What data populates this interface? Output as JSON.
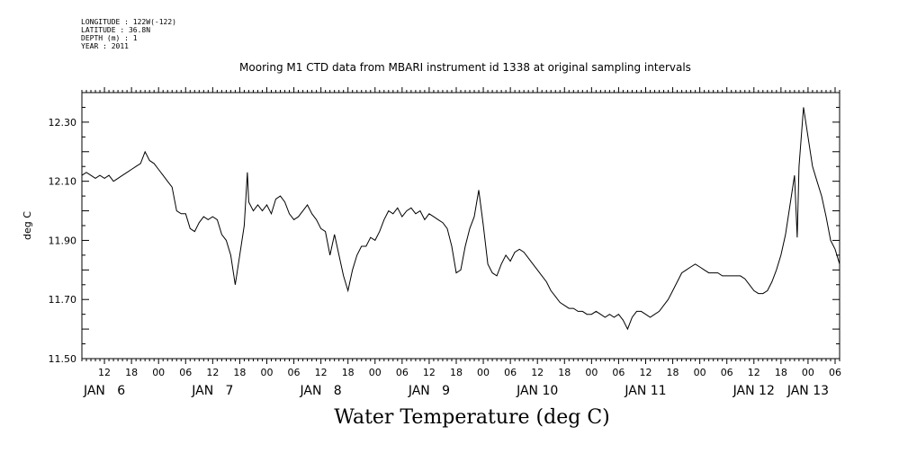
{
  "header": {
    "meta_lines": [
      "LONGITUDE : 122W(-122)",
      "LATITUDE : 36.8N",
      "DEPTH (m) : 1",
      "YEAR : 2011"
    ]
  },
  "chart_data": {
    "type": "line",
    "title": "Mooring M1 CTD data from MBARI instrument id 1338 at original sampling intervals",
    "xlabel": "Water Temperature (deg C)",
    "ylabel": "deg C",
    "ylim": [
      11.5,
      12.4
    ],
    "y_ticks": [
      "11.50",
      "11.70",
      "11.90",
      "12.10",
      "12.30"
    ],
    "x_unit": "hours since Jan 6 00:00 (2011)",
    "xlim": [
      7,
      175
    ],
    "x_hour_ticks": [
      {
        "t": 12,
        "label": "12"
      },
      {
        "t": 18,
        "label": "18"
      },
      {
        "t": 24,
        "label": "00"
      },
      {
        "t": 30,
        "label": "06"
      },
      {
        "t": 36,
        "label": "12"
      },
      {
        "t": 42,
        "label": "18"
      },
      {
        "t": 48,
        "label": "00"
      },
      {
        "t": 54,
        "label": "06"
      },
      {
        "t": 60,
        "label": "12"
      },
      {
        "t": 66,
        "label": "18"
      },
      {
        "t": 72,
        "label": "00"
      },
      {
        "t": 78,
        "label": "06"
      },
      {
        "t": 84,
        "label": "12"
      },
      {
        "t": 90,
        "label": "18"
      },
      {
        "t": 96,
        "label": "00"
      },
      {
        "t": 102,
        "label": "06"
      },
      {
        "t": 108,
        "label": "12"
      },
      {
        "t": 114,
        "label": "18"
      },
      {
        "t": 120,
        "label": "00"
      },
      {
        "t": 126,
        "label": "06"
      },
      {
        "t": 132,
        "label": "12"
      },
      {
        "t": 138,
        "label": "18"
      },
      {
        "t": 144,
        "label": "00"
      },
      {
        "t": 150,
        "label": "06"
      },
      {
        "t": 156,
        "label": "12"
      },
      {
        "t": 162,
        "label": "18"
      },
      {
        "t": 168,
        "label": "00"
      },
      {
        "t": 174,
        "label": "06"
      }
    ],
    "x_day_labels": [
      {
        "t": 12,
        "label": "JAN   6"
      },
      {
        "t": 36,
        "label": "JAN   7"
      },
      {
        "t": 60,
        "label": "JAN   8"
      },
      {
        "t": 84,
        "label": "JAN   9"
      },
      {
        "t": 108,
        "label": "JAN 10"
      },
      {
        "t": 132,
        "label": "JAN 11"
      },
      {
        "t": 156,
        "label": "JAN 12"
      },
      {
        "t": 168,
        "label": "JAN 13"
      }
    ],
    "series": [
      {
        "points": [
          [
            7,
            12.12
          ],
          [
            8,
            12.13
          ],
          [
            9,
            12.12
          ],
          [
            10,
            12.11
          ],
          [
            11,
            12.12
          ],
          [
            12,
            12.11
          ],
          [
            13,
            12.12
          ],
          [
            14,
            12.1
          ],
          [
            15,
            12.11
          ],
          [
            16,
            12.12
          ],
          [
            17,
            12.13
          ],
          [
            18,
            12.14
          ],
          [
            19,
            12.15
          ],
          [
            20,
            12.16
          ],
          [
            21,
            12.2
          ],
          [
            22,
            12.17
          ],
          [
            23,
            12.16
          ],
          [
            24,
            12.14
          ],
          [
            25,
            12.12
          ],
          [
            26,
            12.1
          ],
          [
            27,
            12.08
          ],
          [
            28,
            12.0
          ],
          [
            29,
            11.99
          ],
          [
            30,
            11.99
          ],
          [
            31,
            11.94
          ],
          [
            32,
            11.93
          ],
          [
            33,
            11.96
          ],
          [
            34,
            11.98
          ],
          [
            35,
            11.97
          ],
          [
            36,
            11.98
          ],
          [
            37,
            11.97
          ],
          [
            38,
            11.92
          ],
          [
            39,
            11.9
          ],
          [
            40,
            11.85
          ],
          [
            41,
            11.75
          ],
          [
            42,
            11.85
          ],
          [
            43,
            11.95
          ],
          [
            43.7,
            12.13
          ],
          [
            44,
            12.03
          ],
          [
            45,
            12.0
          ],
          [
            46,
            12.02
          ],
          [
            47,
            12.0
          ],
          [
            48,
            12.02
          ],
          [
            49,
            11.99
          ],
          [
            50,
            12.04
          ],
          [
            51,
            12.05
          ],
          [
            52,
            12.03
          ],
          [
            53,
            11.99
          ],
          [
            54,
            11.97
          ],
          [
            55,
            11.98
          ],
          [
            56,
            12.0
          ],
          [
            57,
            12.02
          ],
          [
            58,
            11.99
          ],
          [
            59,
            11.97
          ],
          [
            60,
            11.94
          ],
          [
            61,
            11.93
          ],
          [
            62,
            11.85
          ],
          [
            63,
            11.92
          ],
          [
            64,
            11.85
          ],
          [
            65,
            11.78
          ],
          [
            66,
            11.73
          ],
          [
            67,
            11.8
          ],
          [
            68,
            11.85
          ],
          [
            69,
            11.88
          ],
          [
            70,
            11.88
          ],
          [
            71,
            11.91
          ],
          [
            72,
            11.9
          ],
          [
            73,
            11.93
          ],
          [
            74,
            11.97
          ],
          [
            75,
            12.0
          ],
          [
            76,
            11.99
          ],
          [
            77,
            12.01
          ],
          [
            78,
            11.98
          ],
          [
            79,
            12.0
          ],
          [
            80,
            12.01
          ],
          [
            81,
            11.99
          ],
          [
            82,
            12.0
          ],
          [
            83,
            11.97
          ],
          [
            84,
            11.99
          ],
          [
            85,
            11.98
          ],
          [
            86,
            11.97
          ],
          [
            87,
            11.96
          ],
          [
            88,
            11.94
          ],
          [
            89,
            11.88
          ],
          [
            90,
            11.79
          ],
          [
            91,
            11.8
          ],
          [
            92,
            11.88
          ],
          [
            93,
            11.94
          ],
          [
            94,
            11.98
          ],
          [
            95,
            12.07
          ],
          [
            96,
            11.95
          ],
          [
            97,
            11.82
          ],
          [
            98,
            11.79
          ],
          [
            99,
            11.78
          ],
          [
            100,
            11.82
          ],
          [
            101,
            11.85
          ],
          [
            102,
            11.83
          ],
          [
            103,
            11.86
          ],
          [
            104,
            11.87
          ],
          [
            105,
            11.86
          ],
          [
            106,
            11.84
          ],
          [
            107,
            11.82
          ],
          [
            108,
            11.8
          ],
          [
            109,
            11.78
          ],
          [
            110,
            11.76
          ],
          [
            111,
            11.73
          ],
          [
            112,
            11.71
          ],
          [
            113,
            11.69
          ],
          [
            114,
            11.68
          ],
          [
            115,
            11.67
          ],
          [
            116,
            11.67
          ],
          [
            117,
            11.66
          ],
          [
            118,
            11.66
          ],
          [
            119,
            11.65
          ],
          [
            120,
            11.65
          ],
          [
            121,
            11.66
          ],
          [
            122,
            11.65
          ],
          [
            123,
            11.64
          ],
          [
            124,
            11.65
          ],
          [
            125,
            11.64
          ],
          [
            126,
            11.65
          ],
          [
            127,
            11.63
          ],
          [
            128,
            11.6
          ],
          [
            129,
            11.64
          ],
          [
            130,
            11.66
          ],
          [
            131,
            11.66
          ],
          [
            132,
            11.65
          ],
          [
            133,
            11.64
          ],
          [
            134,
            11.65
          ],
          [
            135,
            11.66
          ],
          [
            136,
            11.68
          ],
          [
            137,
            11.7
          ],
          [
            138,
            11.73
          ],
          [
            139,
            11.76
          ],
          [
            140,
            11.79
          ],
          [
            141,
            11.8
          ],
          [
            142,
            11.81
          ],
          [
            143,
            11.82
          ],
          [
            144,
            11.81
          ],
          [
            145,
            11.8
          ],
          [
            146,
            11.79
          ],
          [
            147,
            11.79
          ],
          [
            148,
            11.79
          ],
          [
            149,
            11.78
          ],
          [
            150,
            11.78
          ],
          [
            151,
            11.78
          ],
          [
            152,
            11.78
          ],
          [
            153,
            11.78
          ],
          [
            154,
            11.77
          ],
          [
            155,
            11.75
          ],
          [
            156,
            11.73
          ],
          [
            157,
            11.72
          ],
          [
            158,
            11.72
          ],
          [
            159,
            11.73
          ],
          [
            160,
            11.76
          ],
          [
            161,
            11.8
          ],
          [
            162,
            11.85
          ],
          [
            163,
            11.92
          ],
          [
            164,
            12.02
          ],
          [
            165,
            12.12
          ],
          [
            165.6,
            11.91
          ],
          [
            166,
            12.15
          ],
          [
            167,
            12.35
          ],
          [
            168,
            12.25
          ],
          [
            169,
            12.15
          ],
          [
            170,
            12.1
          ],
          [
            171,
            12.05
          ],
          [
            172,
            11.98
          ],
          [
            173,
            11.9
          ],
          [
            174,
            11.87
          ],
          [
            175,
            11.82
          ]
        ]
      }
    ]
  }
}
